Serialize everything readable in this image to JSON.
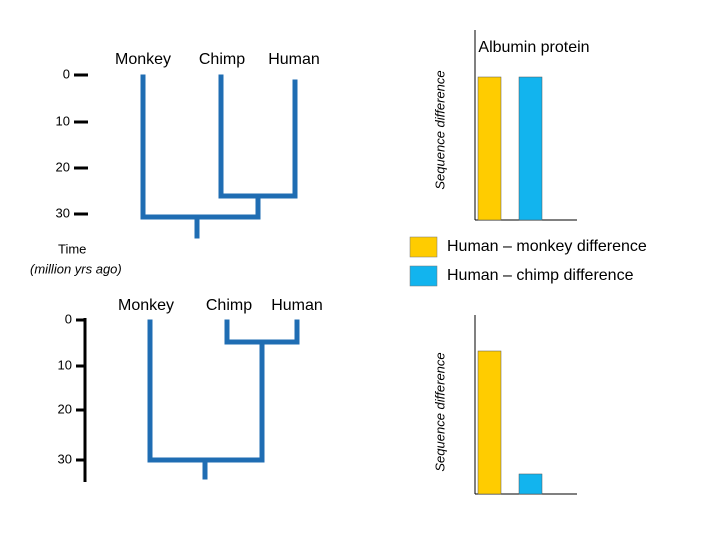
{
  "top_tree": {
    "labels": [
      "Monkey",
      "Chimp",
      "Human"
    ],
    "time_ticks": [
      0,
      10,
      20,
      30
    ]
  },
  "time_label": "Time",
  "time_unit": "(million yrs ago)",
  "bottom_tree": {
    "labels": [
      "Monkey",
      "Chimp",
      "Human"
    ],
    "time_ticks": [
      0,
      10,
      20,
      30
    ]
  },
  "legend": [
    {
      "name": "Human – monkey difference",
      "color": "#ffcc00"
    },
    {
      "name": "Human – chimp difference",
      "color": "#12b4ee"
    }
  ],
  "top_chart": {
    "title": "Albumin protein",
    "y_label": "Sequence difference",
    "values": [
      100,
      100
    ]
  },
  "bottom_chart": {
    "y_label": "Sequence difference",
    "values": [
      100,
      14
    ]
  }
}
